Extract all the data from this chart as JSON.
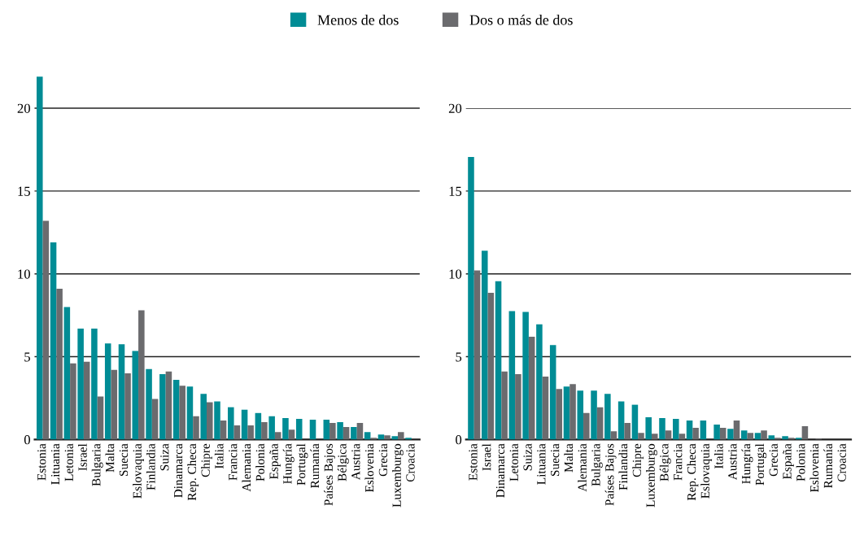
{
  "chart_data": [
    {
      "type": "bar",
      "categories": [
        "Estonia",
        "Lituania",
        "Letonia",
        "Israel",
        "Bulgaria",
        "Malta",
        "Suecia",
        "Eslovaquia",
        "Finlandia",
        "Suiza",
        "Dinamarca",
        "Rep. Checa",
        "Chipre",
        "Italia",
        "Francia",
        "Alemania",
        "Polonia",
        "España",
        "Hungría",
        "Portugal",
        "Rumanía",
        "Países Bajos",
        "Bélgica",
        "Austria",
        "Eslovenia",
        "Grecia",
        "Luxemburgo",
        "Croacia"
      ],
      "series": [
        {
          "name": "Menos de dos",
          "color": "#008c95",
          "values": [
            21.9,
            11.9,
            8.0,
            6.7,
            6.7,
            5.8,
            5.75,
            5.35,
            4.25,
            3.95,
            3.6,
            3.2,
            2.75,
            2.3,
            1.95,
            1.8,
            1.6,
            1.4,
            1.3,
            1.25,
            1.2,
            1.2,
            1.05,
            0.75,
            0.45,
            0.3,
            0.2,
            0.1
          ]
        },
        {
          "name": "Dos o más de dos",
          "color": "#6b6b6e",
          "values": [
            13.2,
            9.1,
            4.6,
            4.7,
            2.6,
            4.2,
            4.0,
            7.8,
            2.45,
            4.1,
            3.25,
            1.4,
            2.25,
            1.15,
            0.85,
            0.85,
            1.05,
            0.45,
            0.6,
            0,
            0,
            1.0,
            0.75,
            1.0,
            0.1,
            0.25,
            0.45,
            0
          ]
        }
      ],
      "ylim": [
        0,
        22
      ],
      "yticks": [
        0,
        5,
        10,
        15,
        20
      ],
      "grid": "y",
      "legend": "top"
    },
    {
      "type": "bar",
      "categories": [
        "Estonia",
        "Israel",
        "Dinamarca",
        "Letonia",
        "Suiza",
        "Lituania",
        "Suecia",
        "Malta",
        "Alemania",
        "Bulgaria",
        "Países Bajos",
        "Finlandia",
        "Chipre",
        "Luxemburgo",
        "Bélgica",
        "Francia",
        "Rep. Checa",
        "Eslovaquia",
        "Italia",
        "Austria",
        "Hungría",
        "Portugal",
        "Grecia",
        "España",
        "Polonia",
        "Eslovenia",
        "Rumanía",
        "Croacia"
      ],
      "series": [
        {
          "name": "Menos de dos",
          "color": "#008c95",
          "values": [
            17.05,
            11.4,
            9.55,
            7.75,
            7.7,
            6.95,
            5.7,
            3.2,
            2.95,
            2.95,
            2.75,
            2.3,
            2.1,
            1.35,
            1.3,
            1.25,
            1.15,
            1.15,
            0.9,
            0.65,
            0.55,
            0.4,
            0.25,
            0.2,
            0.1,
            0,
            0,
            0
          ]
        },
        {
          "name": "Dos o más de dos",
          "color": "#6b6b6e",
          "values": [
            10.2,
            8.85,
            4.1,
            3.95,
            6.2,
            3.8,
            3.05,
            3.35,
            1.6,
            1.95,
            0.5,
            1.0,
            0.4,
            0.35,
            0.55,
            0.35,
            0.7,
            0,
            0.7,
            1.15,
            0.4,
            0.55,
            0.1,
            0.1,
            0.8,
            0.05,
            0,
            0
          ]
        }
      ],
      "ylim": [
        0,
        20
      ],
      "yticks": [
        0,
        5,
        10,
        15,
        20
      ],
      "grid": "y"
    }
  ]
}
